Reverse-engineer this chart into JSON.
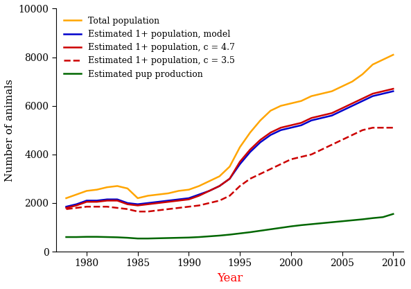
{
  "years": [
    1978,
    1979,
    1980,
    1981,
    1982,
    1983,
    1984,
    1985,
    1986,
    1987,
    1988,
    1989,
    1990,
    1991,
    1992,
    1993,
    1994,
    1995,
    1996,
    1997,
    1998,
    1999,
    2000,
    2001,
    2002,
    2003,
    2004,
    2005,
    2006,
    2007,
    2008,
    2009,
    2010
  ],
  "total_pop": [
    2200,
    2350,
    2500,
    2550,
    2650,
    2700,
    2600,
    2200,
    2300,
    2350,
    2400,
    2500,
    2550,
    2700,
    2900,
    3100,
    3500,
    4300,
    4900,
    5400,
    5800,
    6000,
    6100,
    6200,
    6400,
    6500,
    6600,
    6800,
    7000,
    7300,
    7700,
    7900,
    8100
  ],
  "est_model": [
    1850,
    1950,
    2100,
    2100,
    2150,
    2150,
    2000,
    1950,
    2000,
    2050,
    2100,
    2150,
    2200,
    2350,
    2500,
    2700,
    3000,
    3600,
    4100,
    4500,
    4800,
    5000,
    5100,
    5200,
    5400,
    5500,
    5600,
    5800,
    6000,
    6200,
    6400,
    6500,
    6600
  ],
  "est_c47": [
    1800,
    1900,
    2050,
    2050,
    2100,
    2100,
    1950,
    1900,
    1950,
    2000,
    2050,
    2100,
    2150,
    2300,
    2500,
    2700,
    3000,
    3700,
    4200,
    4600,
    4900,
    5100,
    5200,
    5300,
    5500,
    5600,
    5700,
    5900,
    6100,
    6300,
    6500,
    6600,
    6700
  ],
  "est_c35": [
    1750,
    1800,
    1850,
    1850,
    1850,
    1800,
    1750,
    1650,
    1650,
    1700,
    1750,
    1800,
    1850,
    1900,
    2000,
    2100,
    2300,
    2700,
    3000,
    3200,
    3400,
    3600,
    3800,
    3900,
    4000,
    4200,
    4400,
    4600,
    4800,
    5000,
    5100,
    5100,
    5100
  ],
  "est_pup": [
    600,
    600,
    610,
    610,
    600,
    590,
    570,
    540,
    540,
    550,
    560,
    570,
    580,
    600,
    630,
    660,
    700,
    750,
    800,
    860,
    920,
    980,
    1040,
    1090,
    1130,
    1170,
    1210,
    1250,
    1290,
    1330,
    1380,
    1420,
    1550
  ],
  "total_pop_color": "#FFA500",
  "est_model_color": "#0000CC",
  "est_c47_color": "#CC0000",
  "est_c35_color": "#CC0000",
  "est_pup_color": "#006600",
  "xlabel": "Year",
  "ylabel": "Number of animals",
  "xlim": [
    1977,
    2011
  ],
  "ylim": [
    0,
    10000
  ],
  "yticks": [
    0,
    2000,
    4000,
    6000,
    8000,
    10000
  ],
  "xticks": [
    1980,
    1985,
    1990,
    1995,
    2000,
    2005,
    2010
  ],
  "legend_labels": [
    "Total population",
    "Estimated 1+ population, model",
    "Estimated 1+ population, c = 4.7",
    "Estimated 1+ population, c = 3.5",
    "Estimated pup production"
  ],
  "figsize": [
    5.93,
    4.17
  ],
  "dpi": 100
}
